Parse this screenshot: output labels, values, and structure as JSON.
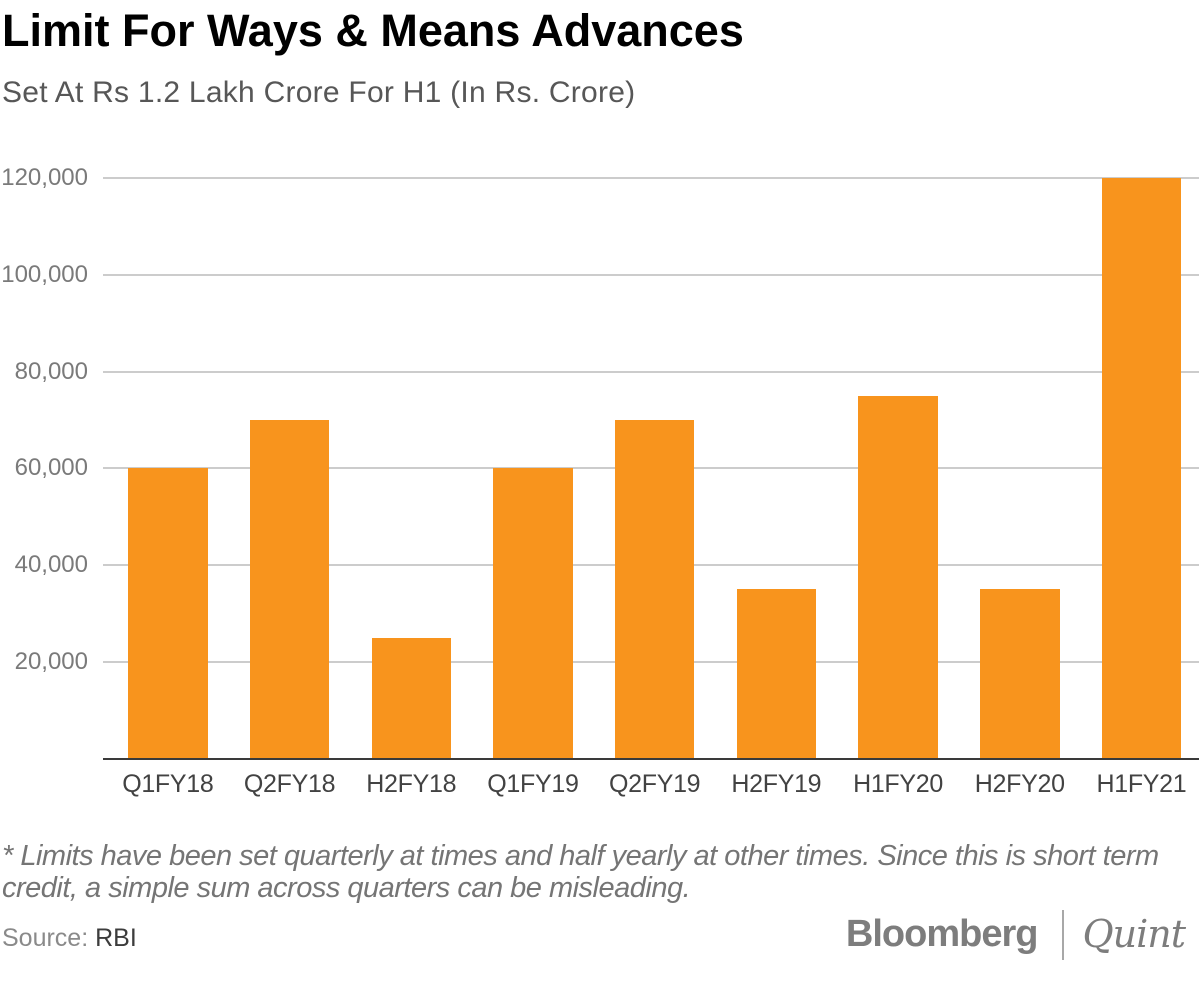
{
  "title": "Limit For Ways & Means Advances",
  "subtitle": "Set At Rs 1.2 Lakh Crore For H1 (In Rs. Crore)",
  "chart_data": {
    "type": "bar",
    "categories": [
      "Q1FY18",
      "Q2FY18",
      "H2FY18",
      "Q1FY19",
      "Q2FY19",
      "H2FY19",
      "H1FY20",
      "H2FY20",
      "H1FY21"
    ],
    "values": [
      60000,
      70000,
      25000,
      60000,
      70000,
      35000,
      75000,
      35000,
      120000
    ],
    "title": "Limit For Ways & Means Advances",
    "subtitle": "Set At Rs 1.2 Lakh Crore For H1 (In Rs. Crore)",
    "xlabel": "",
    "ylabel": "",
    "ylim": [
      0,
      120000
    ],
    "ytick_interval": 20000,
    "ytick_labels": [
      "20,000",
      "40,000",
      "60,000",
      "80,000",
      "100,000",
      "120,000"
    ],
    "grid": true,
    "legend": "none",
    "bar_color": "#f8941d"
  },
  "footnote": "* Limits have been set quarterly at times and half yearly at other times. Since this is short term credit, a simple sum across quarters can be misleading.",
  "source": {
    "label": "Source:",
    "value": "RBI"
  },
  "branding": {
    "bloomberg": "Bloomberg",
    "quint": "Quint"
  },
  "colors": {
    "bar": "#f8941d",
    "grid": "#cccccc",
    "axis_line": "#3a3a3a",
    "y_label": "#7a7a7a",
    "x_label": "#424242",
    "title": "#000000",
    "subtitle": "#575757",
    "footnote": "#757575",
    "logo": "#7d7d7d"
  }
}
